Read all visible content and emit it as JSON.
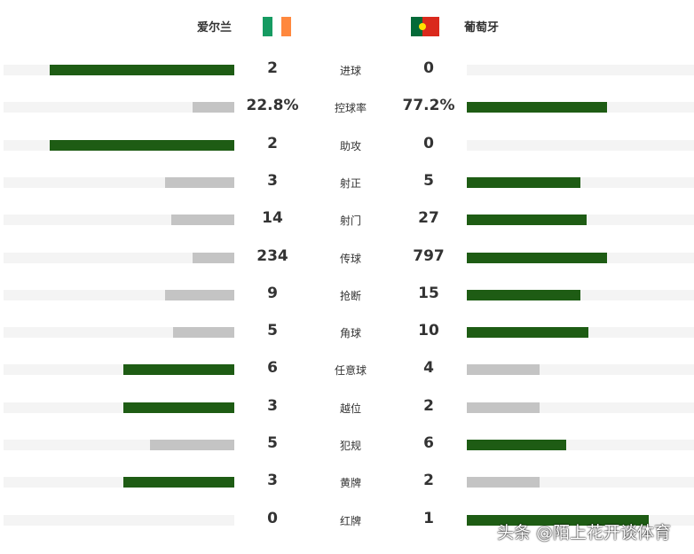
{
  "home": {
    "name": "爱尔兰",
    "flag": "ireland-flag"
  },
  "away": {
    "name": "葡萄牙",
    "flag": "portugal-flag"
  },
  "colors": {
    "leader": "#1e5c14",
    "trailer": "#c4c4c4",
    "track": "#f4f4f4"
  },
  "stats": [
    {
      "label": "进球",
      "home": "2",
      "away": "0"
    },
    {
      "label": "控球率",
      "home": "22.8%",
      "away": "77.2%"
    },
    {
      "label": "助攻",
      "home": "2",
      "away": "0"
    },
    {
      "label": "射正",
      "home": "3",
      "away": "5"
    },
    {
      "label": "射门",
      "home": "14",
      "away": "27"
    },
    {
      "label": "传球",
      "home": "234",
      "away": "797"
    },
    {
      "label": "抢断",
      "home": "9",
      "away": "15"
    },
    {
      "label": "角球",
      "home": "5",
      "away": "10"
    },
    {
      "label": "任意球",
      "home": "6",
      "away": "4"
    },
    {
      "label": "越位",
      "home": "3",
      "away": "2"
    },
    {
      "label": "犯规",
      "home": "5",
      "away": "6"
    },
    {
      "label": "黄牌",
      "home": "3",
      "away": "2"
    },
    {
      "label": "红牌",
      "home": "0",
      "away": "1"
    }
  ],
  "watermark": "头条 @陌上花开谈体育"
}
